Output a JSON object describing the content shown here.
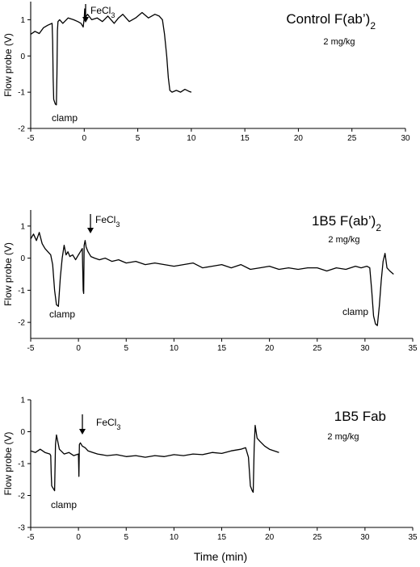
{
  "chart_data": [
    {
      "type": "line",
      "title_main": "Control F(ab’)",
      "title_sub": "2",
      "dose": "2 mg/kg",
      "ylabel": "Flow probe (V)",
      "xlabel": "",
      "xlim": [
        -5,
        30
      ],
      "ylim": [
        -2,
        1.5
      ],
      "xticks": [
        -5,
        0,
        5,
        10,
        15,
        20,
        25,
        30
      ],
      "yticks": [
        -2,
        -1,
        0,
        1
      ],
      "annotations": [
        {
          "text": "clamp",
          "x": -2.7
        },
        {
          "text": "FeCl3",
          "x": 0
        }
      ],
      "series": [
        {
          "x": [
            -5,
            -4.6,
            -4.2,
            -3.8,
            -3.4,
            -3.0,
            -2.95,
            -2.9,
            -2.85,
            -2.7,
            -2.6,
            -2.55,
            -2.5,
            -2.45,
            -2.3,
            -2.0,
            -1.5,
            -1.0,
            -0.6,
            -0.3,
            -0.1,
            0.0,
            0.05,
            0.1,
            0.3,
            0.7,
            1.2,
            1.7,
            2.2,
            2.8,
            3.2,
            3.6,
            4.2,
            4.8,
            5.4,
            6.0,
            6.6,
            7.0,
            7.3,
            7.5,
            7.7,
            7.85,
            8.0,
            8.2,
            8.6,
            9.0,
            9.4,
            9.8,
            10.0
          ],
          "y": [
            0.6,
            0.68,
            0.62,
            0.78,
            0.85,
            0.9,
            0.4,
            -0.6,
            -1.2,
            -1.33,
            -1.35,
            -0.5,
            0.7,
            0.95,
            1.0,
            0.9,
            1.05,
            1.0,
            0.95,
            0.9,
            0.8,
            1.05,
            1.3,
            1.05,
            1.15,
            1.0,
            1.05,
            0.95,
            1.1,
            0.9,
            1.05,
            1.15,
            0.95,
            1.05,
            1.2,
            1.05,
            1.15,
            1.1,
            1.0,
            0.6,
            0.0,
            -0.6,
            -0.95,
            -1.0,
            -0.95,
            -1.0,
            -0.92,
            -0.98,
            -1.0
          ]
        }
      ]
    },
    {
      "type": "line",
      "title_main": "1B5 F(ab’)",
      "title_sub": "2",
      "dose": "2 mg/kg",
      "ylabel": "Flow probe  (V)",
      "xlabel": "",
      "xlim": [
        -5,
        35
      ],
      "ylim": [
        -2.5,
        1.5
      ],
      "xticks": [
        -5,
        0,
        5,
        10,
        15,
        20,
        25,
        30,
        35
      ],
      "yticks": [
        -2,
        -1,
        0,
        1
      ],
      "annotations": [
        {
          "text": "clamp",
          "x": -2.0
        },
        {
          "text": "clamp",
          "x": 31.5
        },
        {
          "text": "FeCl3",
          "x": 0.8
        }
      ],
      "series": [
        {
          "x": [
            -5,
            -4.7,
            -4.4,
            -4.1,
            -3.8,
            -3.5,
            -3.2,
            -2.9,
            -2.7,
            -2.5,
            -2.3,
            -2.1,
            -1.9,
            -1.7,
            -1.5,
            -1.3,
            -1.1,
            -0.9,
            -0.6,
            -0.3,
            0.0,
            0.2,
            0.4,
            0.5,
            0.55,
            0.6,
            0.7,
            0.8,
            1.0,
            1.3,
            1.7,
            2.2,
            2.8,
            3.5,
            4.2,
            5.0,
            6.0,
            7.0,
            8.0,
            9.0,
            10.0,
            11.0,
            12.0,
            13.0,
            14.0,
            15.0,
            16.0,
            17.0,
            18.0,
            19.0,
            20.0,
            21.0,
            22.0,
            23.0,
            24.0,
            25.0,
            26.0,
            27.0,
            28.0,
            29.0,
            29.6,
            30.2,
            30.5,
            30.7,
            30.9,
            31.1,
            31.3,
            31.5,
            31.7,
            31.9,
            32.1,
            32.3,
            32.6,
            33.0
          ],
          "y": [
            0.6,
            0.75,
            0.55,
            0.8,
            0.45,
            0.3,
            0.2,
            0.1,
            -0.2,
            -1.0,
            -1.45,
            -1.5,
            -0.6,
            0.0,
            0.4,
            0.1,
            0.2,
            0.05,
            0.1,
            -0.05,
            0.1,
            0.2,
            0.3,
            -1.0,
            -1.1,
            0.4,
            0.55,
            0.35,
            0.2,
            0.05,
            0.0,
            -0.05,
            0.0,
            -0.1,
            -0.05,
            -0.15,
            -0.1,
            -0.2,
            -0.15,
            -0.2,
            -0.25,
            -0.2,
            -0.15,
            -0.3,
            -0.25,
            -0.2,
            -0.3,
            -0.2,
            -0.35,
            -0.3,
            -0.25,
            -0.35,
            -0.3,
            -0.35,
            -0.3,
            -0.3,
            -0.4,
            -0.3,
            -0.35,
            -0.25,
            -0.3,
            -0.25,
            -0.3,
            -1.0,
            -1.8,
            -2.05,
            -2.1,
            -1.5,
            -0.7,
            -0.1,
            0.15,
            -0.3,
            -0.4,
            -0.5
          ]
        }
      ]
    },
    {
      "type": "line",
      "title_main": "1B5 Fab",
      "title_sub": "",
      "dose": "2 mg/kg",
      "ylabel": "Flow probe (V)",
      "xlabel": "Time (min)",
      "xlim": [
        -5,
        35
      ],
      "ylim": [
        -3,
        1
      ],
      "xticks": [
        -5,
        0,
        5,
        10,
        15,
        20,
        25,
        30,
        35
      ],
      "yticks": [
        -3,
        -2,
        -1,
        0,
        1
      ],
      "annotations": [
        {
          "text": "clamp",
          "x": -2.6
        },
        {
          "text": "FeCl3",
          "x": 0.3
        }
      ],
      "series": [
        {
          "x": [
            -5,
            -4.5,
            -4.0,
            -3.5,
            -3.0,
            -2.9,
            -2.85,
            -2.8,
            -2.7,
            -2.6,
            -2.5,
            -2.4,
            -2.3,
            -2.0,
            -1.5,
            -1.0,
            -0.5,
            0.0,
            0.05,
            0.1,
            0.2,
            0.4,
            0.7,
            1.0,
            1.5,
            2.0,
            3.0,
            4.0,
            5.0,
            6.0,
            7.0,
            8.0,
            9.0,
            10.0,
            11.0,
            12.0,
            13.0,
            14.0,
            15.0,
            16.0,
            17.0,
            17.5,
            17.8,
            18.0,
            18.2,
            18.3,
            18.4,
            18.5,
            18.7,
            19.0,
            19.5,
            20.0,
            20.5,
            21.0
          ],
          "y": [
            -0.6,
            -0.65,
            -0.55,
            -0.65,
            -0.7,
            -0.75,
            -1.3,
            -1.7,
            -1.75,
            -1.8,
            -1.85,
            -0.4,
            -0.1,
            -0.55,
            -0.7,
            -0.65,
            -0.75,
            -0.7,
            -1.4,
            -0.4,
            -0.35,
            -0.45,
            -0.5,
            -0.6,
            -0.65,
            -0.7,
            -0.75,
            -0.72,
            -0.78,
            -0.75,
            -0.8,
            -0.75,
            -0.78,
            -0.72,
            -0.75,
            -0.7,
            -0.72,
            -0.65,
            -0.68,
            -0.6,
            -0.55,
            -0.5,
            -0.8,
            -1.7,
            -1.85,
            -1.9,
            -0.5,
            0.2,
            -0.2,
            -0.3,
            -0.45,
            -0.55,
            -0.6,
            -0.65
          ]
        }
      ]
    }
  ]
}
